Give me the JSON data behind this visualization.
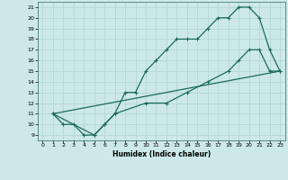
{
  "xlabel": "Humidex (Indice chaleur)",
  "bg_color": "#cce8e8",
  "grid_color": "#b8d8d8",
  "line_color": "#1a6b5a",
  "xlim": [
    -0.5,
    23.5
  ],
  "ylim": [
    8.5,
    21.5
  ],
  "xticks": [
    0,
    1,
    2,
    3,
    4,
    5,
    6,
    7,
    8,
    9,
    10,
    11,
    12,
    13,
    14,
    15,
    16,
    17,
    18,
    19,
    20,
    21,
    22,
    23
  ],
  "yticks": [
    9,
    10,
    11,
    12,
    13,
    14,
    15,
    16,
    17,
    18,
    19,
    20,
    21
  ],
  "line1_x": [
    1,
    2,
    3,
    4,
    5,
    6,
    7,
    8,
    9,
    10,
    11,
    12,
    13,
    14,
    15,
    16,
    17,
    18,
    19,
    20,
    21,
    22,
    23
  ],
  "line1_y": [
    11,
    10,
    10,
    9,
    9,
    10,
    11,
    13,
    13,
    15,
    16,
    17,
    18,
    18,
    18,
    19,
    20,
    20,
    21,
    21,
    20,
    17,
    15
  ],
  "line2_x": [
    1,
    5,
    6,
    7,
    10,
    12,
    14,
    16,
    18,
    19,
    20,
    21,
    22,
    23
  ],
  "line2_y": [
    11,
    9,
    10,
    11,
    12,
    12,
    13,
    14,
    15,
    16,
    17,
    17,
    15,
    15
  ],
  "line3_x": [
    1,
    23
  ],
  "line3_y": [
    11,
    15
  ]
}
